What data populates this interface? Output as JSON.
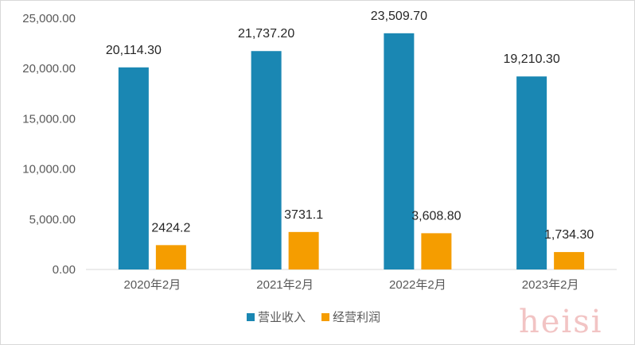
{
  "chart_data": {
    "type": "bar",
    "title": "",
    "xlabel": "",
    "ylabel": "",
    "categories": [
      "2020年2月",
      "2021年2月",
      "2022年2月",
      "2023年2月"
    ],
    "series": [
      {
        "name": "营业收入",
        "color": "#1a87b3",
        "values": [
          20114.3,
          21737.2,
          23509.7,
          19210.3
        ],
        "labels": [
          "20,114.30",
          "21,737.20",
          "23,509.70",
          "19,210.30"
        ]
      },
      {
        "name": "经营利润",
        "color": "#f59d00",
        "values": [
          2424.2,
          3731.1,
          3608.8,
          1734.3
        ],
        "labels": [
          "2424.2",
          "3731.1",
          "3,608.80",
          "1,734.30"
        ]
      }
    ],
    "ylim": [
      0,
      25000
    ],
    "yticks": [
      0,
      5000,
      10000,
      15000,
      20000,
      25000
    ],
    "ytick_labels": [
      "0.00",
      "5,000.00",
      "10,000.00",
      "15,000.00",
      "20,000.00",
      "25,000.00"
    ],
    "grid": false,
    "legend_position": "bottom"
  },
  "watermark": "heisi"
}
